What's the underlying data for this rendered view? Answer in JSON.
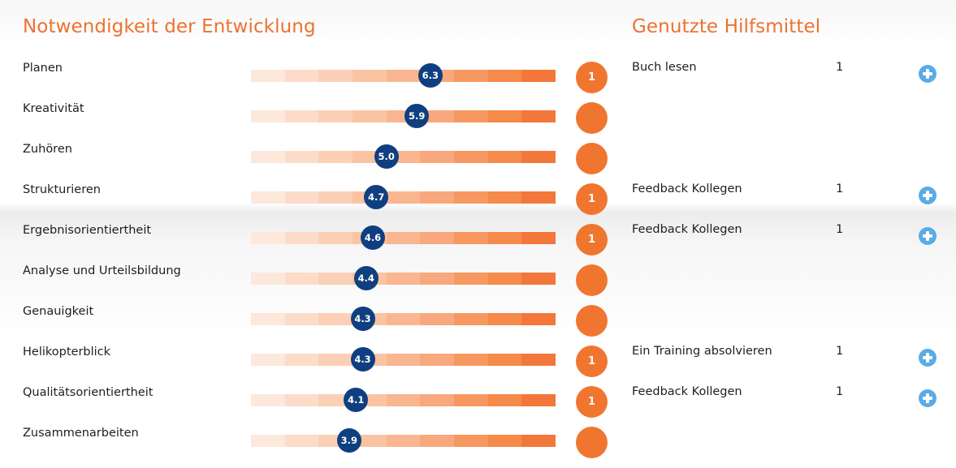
{
  "left_heading": "Notwendigkeit der Entwicklung",
  "right_heading": "Genutzte Hilfsmittel",
  "scale_colors": [
    "#fde8dc",
    "#fcdcc9",
    "#fbd0b6",
    "#fac4a3",
    "#f9b690",
    "#f8a87c",
    "#f6985f",
    "#f58a4b",
    "#f3773a"
  ],
  "scale_range": [
    1,
    10
  ],
  "marker_color": "#0f3f80",
  "count_color": "#f07630",
  "plus_color": "#5aabe6",
  "rows": [
    {
      "skill": "Planen",
      "score": "6.3",
      "count": "1",
      "aid": {
        "label": "Buch lesen",
        "number": "1"
      }
    },
    {
      "skill": "Kreativität",
      "score": "5.9",
      "count": "",
      "aid": null
    },
    {
      "skill": "Zuhören",
      "score": "5.0",
      "count": "",
      "aid": null
    },
    {
      "skill": "Strukturieren",
      "score": "4.7",
      "count": "1",
      "aid": {
        "label": "Feedback Kollegen",
        "number": "1"
      }
    },
    {
      "skill": "Ergebnisorientiertheit",
      "score": "4.6",
      "count": "1",
      "aid": {
        "label": "Feedback Kollegen",
        "number": "1"
      }
    },
    {
      "skill": "Analyse und Urteilsbildung",
      "score": "4.4",
      "count": "",
      "aid": null
    },
    {
      "skill": "Genauigkeit",
      "score": "4.3",
      "count": "",
      "aid": null
    },
    {
      "skill": "Helikopterblick",
      "score": "4.3",
      "count": "1",
      "aid": {
        "label": "Ein Training absolvieren",
        "number": "1"
      }
    },
    {
      "skill": "Qualitätsorientiertheit",
      "score": "4.1",
      "count": "1",
      "aid": {
        "label": "Feedback Kollegen",
        "number": "1"
      }
    },
    {
      "skill": "Zusammenarbeiten",
      "score": "3.9",
      "count": "",
      "aid": null
    }
  ]
}
